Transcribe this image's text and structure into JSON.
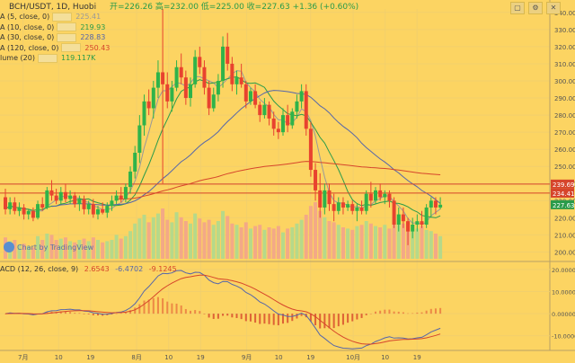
{
  "header": {
    "title": "BCH/USDT, 1D, Huobi",
    "ohlc": "开=226.26 高=232.00 低=225.00 收=227.63 +1.36 (+0.60%)"
  },
  "legend": [
    {
      "label": "A (5, close, 0)",
      "value": "225.41",
      "color": "#999999"
    },
    {
      "label": "A (10, close, 0)",
      "value": "219.93",
      "color": "#2a9b4a"
    },
    {
      "label": "A (30, close, 0)",
      "value": "228.83",
      "color": "#5566aa"
    },
    {
      "label": "A (120, close, 0)",
      "value": "250.43",
      "color": "#d6452b"
    },
    {
      "label": "lume (20)",
      "value": "119.117K",
      "color": "#2a9b4a"
    }
  ],
  "macd_legend": {
    "label": "ACD (12, 26, close, 9)",
    "v1": "2.6543",
    "v2": "-6.4702",
    "v3": "-9.1245"
  },
  "tradingview": "Chart by TradingView",
  "chart_data": [
    {
      "type": "candlestick",
      "title": "BCH/USDT, 1D, Huobi",
      "price_axis": {
        "ylim": [
          195,
          342
        ],
        "ticks": [
          200,
          210,
          220,
          230,
          240,
          250,
          260,
          270,
          280,
          290,
          300,
          310,
          320,
          330,
          340
        ]
      },
      "price_labels": [
        {
          "value": 239.69,
          "text": "239.69",
          "color": "#d6452b"
        },
        {
          "value": 234.41,
          "text": "234.41",
          "color": "#d6452b"
        },
        {
          "value": 227.63,
          "text": "227.63",
          "color": "#2a9b4a"
        }
      ],
      "horizontal_lines": [
        239.69,
        234.41
      ],
      "x_axis_labels": [
        {
          "text": "7月",
          "day": 5
        },
        {
          "text": "10",
          "day": 15
        },
        {
          "text": "19",
          "day": 24
        },
        {
          "text": "8月",
          "day": 37
        },
        {
          "text": "10",
          "day": 46
        },
        {
          "text": "19",
          "day": 55
        },
        {
          "text": "9月",
          "day": 68
        },
        {
          "text": "10",
          "day": 77
        },
        {
          "text": "19",
          "day": 86
        },
        {
          "text": "10月",
          "day": 98
        },
        {
          "text": "10",
          "day": 107
        },
        {
          "text": "19",
          "day": 116
        }
      ],
      "candles": [
        {
          "o": 232,
          "h": 237,
          "l": 222,
          "c": 225
        },
        {
          "o": 225,
          "h": 232,
          "l": 222,
          "c": 229
        },
        {
          "o": 229,
          "h": 232,
          "l": 222,
          "c": 224
        },
        {
          "o": 224,
          "h": 229,
          "l": 221,
          "c": 226
        },
        {
          "o": 226,
          "h": 228,
          "l": 219,
          "c": 222
        },
        {
          "o": 222,
          "h": 225,
          "l": 219,
          "c": 224
        },
        {
          "o": 224,
          "h": 226,
          "l": 218,
          "c": 220
        },
        {
          "o": 220,
          "h": 230,
          "l": 219,
          "c": 228
        },
        {
          "o": 228,
          "h": 232,
          "l": 224,
          "c": 226
        },
        {
          "o": 226,
          "h": 238,
          "l": 225,
          "c": 236
        },
        {
          "o": 236,
          "h": 242,
          "l": 230,
          "c": 233
        },
        {
          "o": 233,
          "h": 237,
          "l": 228,
          "c": 230
        },
        {
          "o": 230,
          "h": 238,
          "l": 228,
          "c": 235
        },
        {
          "o": 235,
          "h": 240,
          "l": 229,
          "c": 231
        },
        {
          "o": 231,
          "h": 236,
          "l": 228,
          "c": 233
        },
        {
          "o": 233,
          "h": 235,
          "l": 226,
          "c": 228
        },
        {
          "o": 228,
          "h": 233,
          "l": 224,
          "c": 231
        },
        {
          "o": 231,
          "h": 233,
          "l": 222,
          "c": 225
        },
        {
          "o": 225,
          "h": 230,
          "l": 222,
          "c": 228
        },
        {
          "o": 228,
          "h": 231,
          "l": 220,
          "c": 222
        },
        {
          "o": 222,
          "h": 227,
          "l": 219,
          "c": 225
        },
        {
          "o": 225,
          "h": 229,
          "l": 222,
          "c": 223
        },
        {
          "o": 223,
          "h": 229,
          "l": 220,
          "c": 227
        },
        {
          "o": 227,
          "h": 233,
          "l": 224,
          "c": 230
        },
        {
          "o": 230,
          "h": 236,
          "l": 228,
          "c": 233
        },
        {
          "o": 233,
          "h": 238,
          "l": 229,
          "c": 231
        },
        {
          "o": 231,
          "h": 240,
          "l": 229,
          "c": 238
        },
        {
          "o": 238,
          "h": 250,
          "l": 234,
          "c": 247
        },
        {
          "o": 247,
          "h": 262,
          "l": 243,
          "c": 258
        },
        {
          "o": 258,
          "h": 280,
          "l": 252,
          "c": 274
        },
        {
          "o": 274,
          "h": 292,
          "l": 268,
          "c": 288
        },
        {
          "o": 288,
          "h": 295,
          "l": 280,
          "c": 284
        },
        {
          "o": 284,
          "h": 300,
          "l": 278,
          "c": 296
        },
        {
          "o": 296,
          "h": 312,
          "l": 290,
          "c": 305
        },
        {
          "o": 305,
          "h": 342,
          "l": 240,
          "c": 298
        },
        {
          "o": 298,
          "h": 305,
          "l": 284,
          "c": 288
        },
        {
          "o": 288,
          "h": 300,
          "l": 282,
          "c": 296
        },
        {
          "o": 296,
          "h": 312,
          "l": 294,
          "c": 308
        },
        {
          "o": 308,
          "h": 316,
          "l": 298,
          "c": 302
        },
        {
          "o": 302,
          "h": 306,
          "l": 286,
          "c": 290
        },
        {
          "o": 290,
          "h": 302,
          "l": 285,
          "c": 298
        },
        {
          "o": 298,
          "h": 318,
          "l": 296,
          "c": 314
        },
        {
          "o": 314,
          "h": 320,
          "l": 304,
          "c": 308
        },
        {
          "o": 308,
          "h": 312,
          "l": 292,
          "c": 296
        },
        {
          "o": 296,
          "h": 300,
          "l": 280,
          "c": 284
        },
        {
          "o": 284,
          "h": 296,
          "l": 282,
          "c": 292
        },
        {
          "o": 292,
          "h": 304,
          "l": 288,
          "c": 300
        },
        {
          "o": 300,
          "h": 326,
          "l": 296,
          "c": 320
        },
        {
          "o": 320,
          "h": 328,
          "l": 306,
          "c": 310
        },
        {
          "o": 310,
          "h": 314,
          "l": 294,
          "c": 298
        },
        {
          "o": 298,
          "h": 306,
          "l": 292,
          "c": 302
        },
        {
          "o": 302,
          "h": 310,
          "l": 296,
          "c": 298
        },
        {
          "o": 298,
          "h": 300,
          "l": 284,
          "c": 288
        },
        {
          "o": 288,
          "h": 296,
          "l": 286,
          "c": 294
        },
        {
          "o": 294,
          "h": 298,
          "l": 284,
          "c": 286
        },
        {
          "o": 286,
          "h": 288,
          "l": 276,
          "c": 280
        },
        {
          "o": 280,
          "h": 290,
          "l": 278,
          "c": 286
        },
        {
          "o": 286,
          "h": 288,
          "l": 274,
          "c": 278
        },
        {
          "o": 278,
          "h": 282,
          "l": 268,
          "c": 272
        },
        {
          "o": 272,
          "h": 276,
          "l": 266,
          "c": 270
        },
        {
          "o": 270,
          "h": 284,
          "l": 268,
          "c": 280
        },
        {
          "o": 280,
          "h": 286,
          "l": 270,
          "c": 274
        },
        {
          "o": 274,
          "h": 284,
          "l": 272,
          "c": 282
        },
        {
          "o": 282,
          "h": 292,
          "l": 278,
          "c": 288
        },
        {
          "o": 288,
          "h": 298,
          "l": 284,
          "c": 294
        },
        {
          "o": 294,
          "h": 298,
          "l": 268,
          "c": 272
        },
        {
          "o": 272,
          "h": 276,
          "l": 244,
          "c": 248
        },
        {
          "o": 248,
          "h": 252,
          "l": 230,
          "c": 236
        },
        {
          "o": 236,
          "h": 246,
          "l": 220,
          "c": 226
        },
        {
          "o": 226,
          "h": 240,
          "l": 222,
          "c": 236
        },
        {
          "o": 236,
          "h": 240,
          "l": 224,
          "c": 228
        },
        {
          "o": 228,
          "h": 234,
          "l": 218,
          "c": 224
        },
        {
          "o": 224,
          "h": 232,
          "l": 222,
          "c": 229
        },
        {
          "o": 229,
          "h": 232,
          "l": 222,
          "c": 226
        },
        {
          "o": 226,
          "h": 230,
          "l": 224,
          "c": 228
        },
        {
          "o": 228,
          "h": 230,
          "l": 222,
          "c": 224
        },
        {
          "o": 224,
          "h": 228,
          "l": 218,
          "c": 226
        },
        {
          "o": 226,
          "h": 230,
          "l": 222,
          "c": 224
        },
        {
          "o": 224,
          "h": 236,
          "l": 222,
          "c": 234
        },
        {
          "o": 234,
          "h": 241,
          "l": 226,
          "c": 230
        },
        {
          "o": 230,
          "h": 238,
          "l": 228,
          "c": 236
        },
        {
          "o": 236,
          "h": 240,
          "l": 230,
          "c": 232
        },
        {
          "o": 232,
          "h": 236,
          "l": 228,
          "c": 234
        },
        {
          "o": 234,
          "h": 236,
          "l": 226,
          "c": 230
        },
        {
          "o": 230,
          "h": 232,
          "l": 214,
          "c": 216
        },
        {
          "o": 216,
          "h": 226,
          "l": 212,
          "c": 222
        },
        {
          "o": 222,
          "h": 226,
          "l": 214,
          "c": 218
        },
        {
          "o": 218,
          "h": 220,
          "l": 204,
          "c": 212
        },
        {
          "o": 212,
          "h": 220,
          "l": 208,
          "c": 216
        },
        {
          "o": 216,
          "h": 222,
          "l": 212,
          "c": 218
        },
        {
          "o": 218,
          "h": 224,
          "l": 214,
          "c": 216
        },
        {
          "o": 216,
          "h": 228,
          "l": 214,
          "c": 226
        },
        {
          "o": 226,
          "h": 232,
          "l": 220,
          "c": 230
        },
        {
          "o": 230,
          "h": 232,
          "l": 222,
          "c": 226
        },
        {
          "o": 226,
          "h": 232,
          "l": 225,
          "c": 227.63
        }
      ],
      "volume": [
        34,
        28,
        30,
        22,
        24,
        20,
        18,
        36,
        30,
        40,
        38,
        30,
        32,
        34,
        28,
        26,
        30,
        32,
        28,
        34,
        30,
        26,
        28,
        30,
        38,
        32,
        36,
        44,
        56,
        64,
        70,
        58,
        66,
        72,
        80,
        62,
        58,
        74,
        66,
        60,
        56,
        72,
        64,
        58,
        62,
        54,
        60,
        76,
        68,
        56,
        54,
        50,
        58,
        48,
        52,
        54,
        46,
        50,
        48,
        52,
        42,
        48,
        50,
        56,
        62,
        70,
        84,
        90,
        76,
        66,
        60,
        58,
        54,
        50,
        48,
        46,
        52,
        54,
        60,
        56,
        52,
        50,
        54,
        48,
        62,
        58,
        56,
        60,
        50,
        48,
        52,
        46,
        44,
        40,
        36
      ],
      "series": [
        {
          "name": "A (5, close, 0)",
          "color": "#999999"
        },
        {
          "name": "A (10, close, 0)",
          "color": "#2a9b4a"
        },
        {
          "name": "A (30, close, 0)",
          "color": "#5566aa"
        },
        {
          "name": "A (120, close, 0)",
          "color": "#d6452b"
        }
      ]
    },
    {
      "type": "macd",
      "title": "ACD (12, 26, close, 9)",
      "ylim": [
        -15,
        22
      ],
      "ticks": [
        -10,
        0,
        10,
        20
      ],
      "tick_labels": [
        "-10.00000",
        "0.00000",
        "10.00000",
        "20.00000"
      ]
    }
  ]
}
